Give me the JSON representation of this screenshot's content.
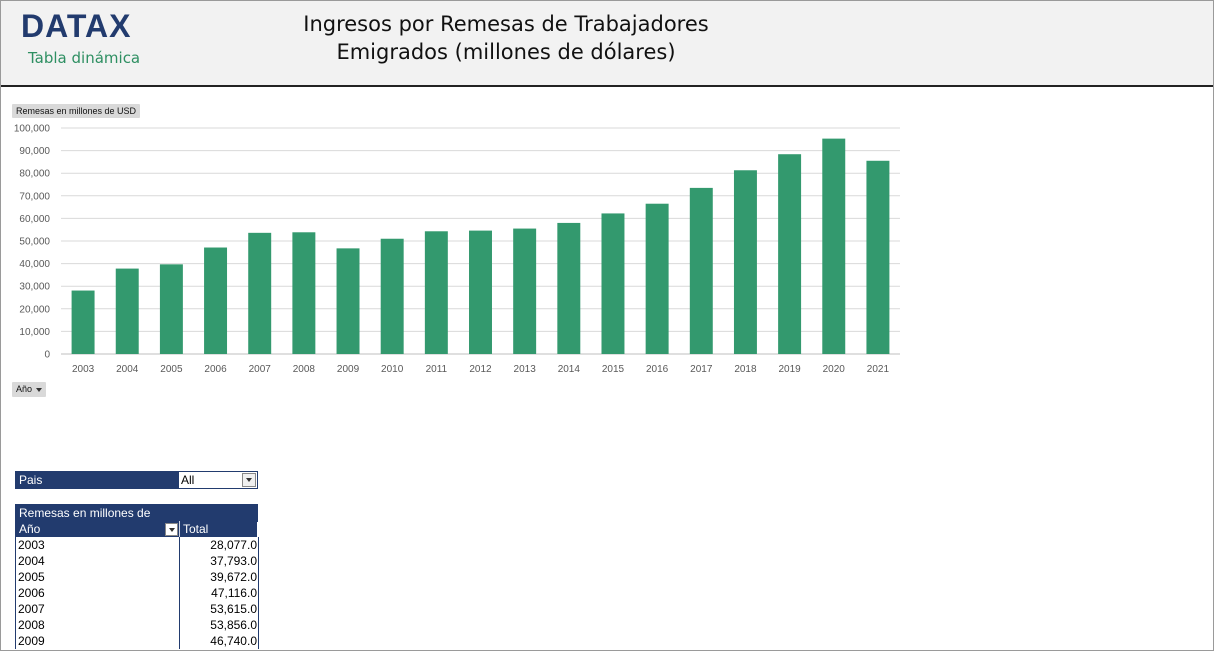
{
  "header": {
    "logo": "DATAX",
    "subtitle": "Tabla dinámica",
    "title_line1": "Ingresos por Remesas de Trabajadores",
    "title_line2": "Emigrados (millones de dólares)"
  },
  "chart_field_button": "Remesas en millones  de USD",
  "axis_field_button": "Año",
  "colors": {
    "bar": "#33996e",
    "header_navy": "#223b6e",
    "logo_green": "#2e8f62"
  },
  "chart_data": {
    "type": "bar",
    "categories": [
      "2003",
      "2004",
      "2005",
      "2006",
      "2007",
      "2008",
      "2009",
      "2010",
      "2011",
      "2012",
      "2013",
      "2014",
      "2015",
      "2016",
      "2017",
      "2018",
      "2019",
      "2020",
      "2021"
    ],
    "values": [
      28077.0,
      37793.0,
      39672.0,
      47116.0,
      53615.0,
      53856.0,
      46740.0,
      51000,
      54300,
      54600,
      55500,
      58000,
      62200,
      66500,
      73500,
      81300,
      88400,
      95300,
      85500
    ],
    "ylim": [
      0,
      100000
    ],
    "yticks": [
      "0",
      "10,000",
      "20,000",
      "30,000",
      "40,000",
      "50,000",
      "60,000",
      "70,000",
      "80,000",
      "90,000",
      "100,000"
    ],
    "grid": true,
    "legend": "none"
  },
  "pivot": {
    "filter_label": "Pais",
    "filter_value": "All",
    "value_header": "Remesas en millones de USD",
    "row_header": "Año",
    "total_header": "Total",
    "rows": [
      {
        "year": "2003",
        "total": "28,077.0"
      },
      {
        "year": "2004",
        "total": "37,793.0"
      },
      {
        "year": "2005",
        "total": "39,672.0"
      },
      {
        "year": "2006",
        "total": "47,116.0"
      },
      {
        "year": "2007",
        "total": "53,615.0"
      },
      {
        "year": "2008",
        "total": "53,856.0"
      },
      {
        "year": "2009",
        "total": "46,740.0"
      }
    ]
  }
}
